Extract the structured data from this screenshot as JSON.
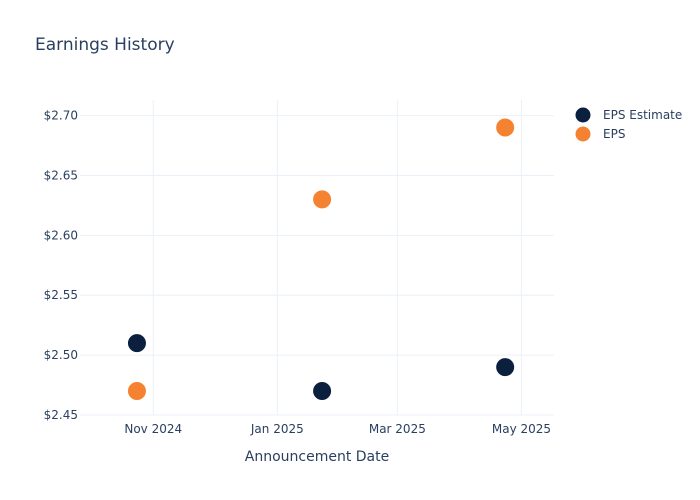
{
  "chart_data": {
    "type": "scatter",
    "title": "Earnings History",
    "xlabel": "Announcement Date",
    "ylabel": "",
    "x_axis_type": "date",
    "xlim": [
      "2024-09-26",
      "2025-05-17"
    ],
    "ylim": [
      2.45,
      2.713
    ],
    "x_ticks": [
      {
        "date": "2024-11-01",
        "label": "Nov 2024"
      },
      {
        "date": "2025-01-01",
        "label": "Jan 2025"
      },
      {
        "date": "2025-03-01",
        "label": "Mar 2025"
      },
      {
        "date": "2025-05-01",
        "label": "May 2025"
      }
    ],
    "y_ticks": [
      {
        "value": 2.45,
        "label": "$2.45"
      },
      {
        "value": 2.5,
        "label": "$2.50"
      },
      {
        "value": 2.55,
        "label": "$2.55"
      },
      {
        "value": 2.6,
        "label": "$2.60"
      },
      {
        "value": 2.65,
        "label": "$2.65"
      },
      {
        "value": 2.7,
        "label": "$2.70"
      }
    ],
    "grid": true,
    "legend_position": "top-right",
    "series": [
      {
        "name": "EPS Estimate",
        "color": "#0b1f3f",
        "points": [
          {
            "x": "2024-10-24",
            "y": 2.51
          },
          {
            "x": "2025-01-23",
            "y": 2.47
          },
          {
            "x": "2025-04-23",
            "y": 2.49
          }
        ]
      },
      {
        "name": "EPS",
        "color": "#f58231",
        "points": [
          {
            "x": "2024-10-24",
            "y": 2.47
          },
          {
            "x": "2025-01-23",
            "y": 2.63
          },
          {
            "x": "2025-04-23",
            "y": 2.69
          }
        ]
      }
    ]
  }
}
